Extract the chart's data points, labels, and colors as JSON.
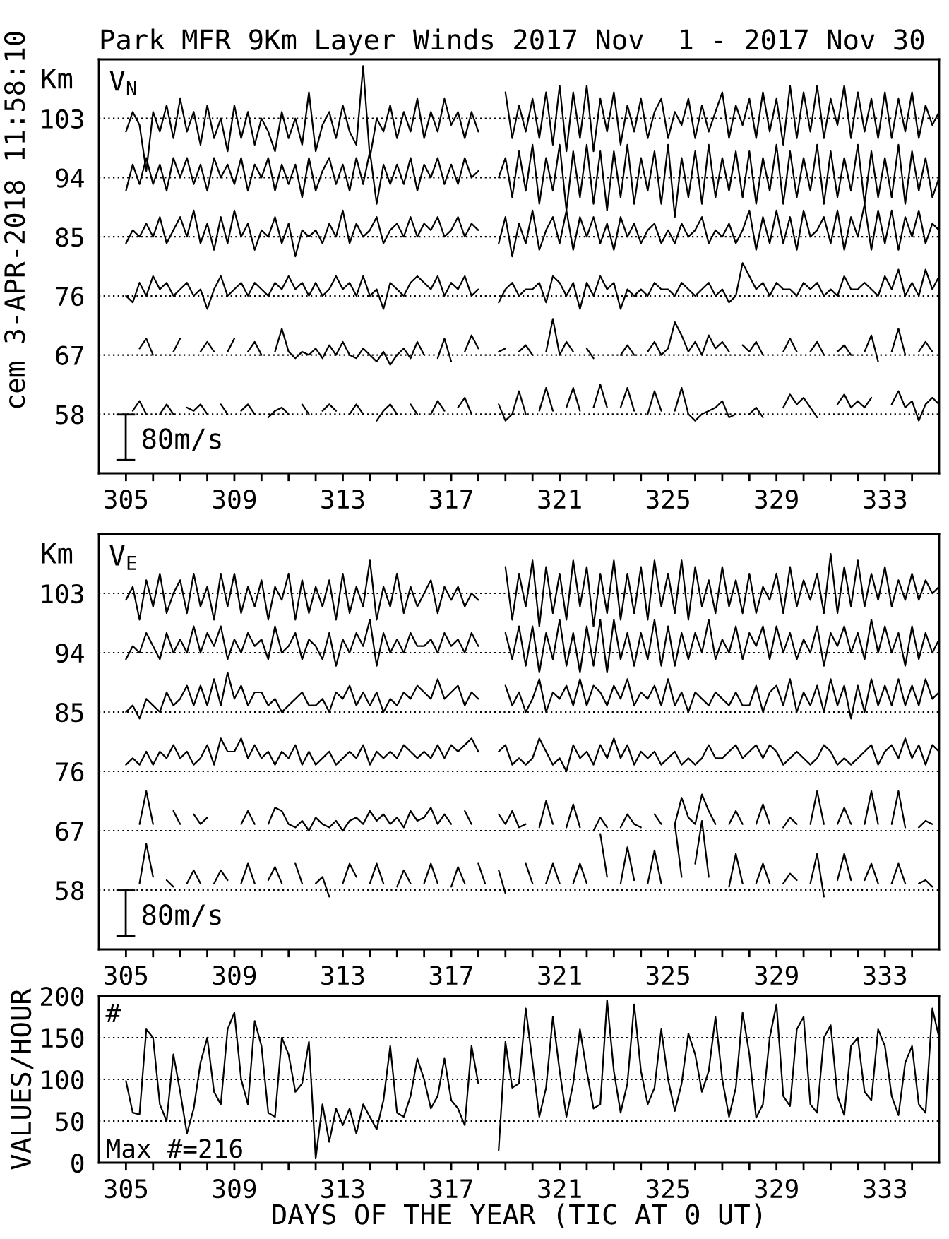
{
  "chart_data": [
    {
      "type": "line",
      "title": "Park MFR 9Km Layer Winds 2017 Nov  1 - 2017 Nov 30",
      "ylabel": "Km",
      "annotations": [
        "V$_{N}$",
        "80m/s",
        "cem 3-APR-2018 11:58:10"
      ],
      "xlim": [
        304,
        335
      ],
      "ylim": [
        49,
        112
      ],
      "yticks": [
        58,
        67,
        76,
        85,
        94,
        103
      ],
      "grid": "y",
      "xticks": [
        305,
        {
          "value": 306,
          "label": null
        },
        {
          "value": 307,
          "label": null
        },
        {
          "value": 308,
          "label": null
        },
        309,
        {
          "value": 310,
          "label": null
        },
        {
          "value": 311,
          "label": null
        },
        {
          "value": 312,
          "label": null
        },
        313,
        {
          "value": 314,
          "label": null
        },
        {
          "value": 315,
          "label": null
        },
        {
          "value": 316,
          "label": null
        },
        317,
        {
          "value": 318,
          "label": null
        },
        {
          "value": 319,
          "label": null
        },
        {
          "value": 320,
          "label": null
        },
        321,
        {
          "value": 322,
          "label": null
        },
        {
          "value": 323,
          "label": null
        },
        {
          "value": 324,
          "label": null
        },
        325,
        {
          "value": 326,
          "label": null
        },
        {
          "value": 327,
          "label": null
        },
        {
          "value": 328,
          "label": null
        },
        329,
        {
          "value": 330,
          "label": null
        },
        {
          "value": 331,
          "label": null
        },
        {
          "value": 332,
          "label": null
        },
        333,
        {
          "value": 334,
          "label": null
        }
      ],
      "x": [
        305,
        305.25,
        305.5,
        305.75,
        306,
        306.25,
        306.5,
        306.75,
        307,
        307.25,
        307.5,
        307.75,
        308,
        308.25,
        308.5,
        308.75,
        309,
        309.25,
        309.5,
        309.75,
        310,
        310.25,
        310.5,
        310.75,
        311,
        311.25,
        311.5,
        311.75,
        312,
        312.25,
        312.5,
        312.75,
        313,
        313.25,
        313.5,
        313.75,
        314,
        314.25,
        314.5,
        314.75,
        315,
        315.25,
        315.5,
        315.75,
        316,
        316.25,
        316.5,
        316.75,
        317,
        317.25,
        317.5,
        317.75,
        318,
        318.25,
        318.5,
        318.75,
        319,
        319.25,
        319.5,
        319.75,
        320,
        320.25,
        320.5,
        320.75,
        321,
        321.25,
        321.5,
        321.75,
        322,
        322.25,
        322.5,
        322.75,
        323,
        323.25,
        323.5,
        323.75,
        324,
        324.25,
        324.5,
        324.75,
        325,
        325.25,
        325.5,
        325.75,
        326,
        326.25,
        326.5,
        326.75,
        327,
        327.25,
        327.5,
        327.75,
        328,
        328.25,
        328.5,
        328.75,
        329,
        329.25,
        329.5,
        329.75,
        330,
        330.25,
        330.5,
        330.75,
        331,
        331.25,
        331.5,
        331.75,
        332,
        332.25,
        332.5,
        332.75,
        333,
        333.25,
        333.5,
        333.75,
        334,
        334.25,
        334.5,
        334.75,
        335
      ],
      "series": [
        {
          "color": "#000000",
          "values": [
            101,
            104,
            102,
            95,
            104,
            101,
            105,
            100,
            106,
            101,
            104,
            99,
            105,
            100,
            103,
            98,
            105,
            100,
            104,
            99,
            103,
            101,
            98,
            104,
            100,
            103,
            99,
            107,
            98,
            102,
            104,
            100,
            105,
            101,
            99,
            111,
            97,
            103,
            101,
            105,
            100,
            104,
            101,
            106,
            100,
            104,
            101,
            106,
            102,
            104,
            100,
            104,
            101,
            null,
            null,
            null,
            107,
            100,
            105,
            101,
            106,
            100,
            107,
            99,
            108,
            98,
            107,
            100,
            108,
            98,
            106,
            101,
            107,
            99,
            105,
            101,
            106,
            100,
            104,
            106,
            100,
            104,
            102,
            106,
            100,
            105,
            101,
            104,
            107,
            100,
            105,
            102,
            106,
            100,
            107,
            101,
            106,
            99,
            108,
            100,
            107,
            101,
            108,
            100,
            106,
            102,
            108,
            100,
            107,
            101,
            106,
            100,
            107,
            100,
            106,
            101,
            107,
            100,
            105,
            102,
            104
          ]
        },
        {
          "color": "#000000",
          "values": [
            92,
            96,
            93,
            97,
            93,
            96,
            92,
            97,
            94,
            97,
            93,
            96,
            92,
            97,
            94,
            96,
            93,
            97,
            92,
            96,
            94,
            97,
            92,
            96,
            93,
            96,
            91,
            97,
            92,
            95,
            97,
            93,
            96,
            92,
            97,
            93,
            98,
            90,
            96,
            93,
            96,
            93,
            97,
            92,
            96,
            94,
            97,
            93,
            96,
            93,
            97,
            94,
            95,
            null,
            null,
            94,
            97,
            91,
            98,
            92,
            99,
            90,
            97,
            92,
            99,
            89,
            98,
            91,
            99,
            90,
            98,
            89,
            98,
            91,
            99,
            90,
            97,
            92,
            98,
            90,
            99,
            88,
            97,
            91,
            98,
            90,
            99,
            91,
            97,
            92,
            98,
            91,
            98,
            90,
            97,
            92,
            99,
            90,
            98,
            91,
            97,
            92,
            99,
            90,
            98,
            91,
            97,
            92,
            99,
            90,
            98,
            91,
            97,
            91,
            99,
            90,
            98,
            92,
            97,
            91,
            94
          ]
        },
        {
          "color": "#000000",
          "values": [
            84,
            86,
            85,
            87,
            85,
            88,
            84,
            86,
            88,
            85,
            89,
            84,
            87,
            83,
            88,
            84,
            89,
            85,
            87,
            83,
            86,
            85,
            88,
            84,
            87,
            82,
            86,
            85,
            86,
            84,
            87,
            85,
            89,
            84,
            87,
            85,
            86,
            88,
            84,
            86,
            87,
            85,
            88,
            85,
            87,
            86,
            88,
            85,
            86,
            88,
            85,
            87,
            86,
            null,
            null,
            84,
            88,
            82,
            87,
            84,
            89,
            83,
            86,
            88,
            84,
            89,
            83,
            88,
            85,
            88,
            84,
            87,
            83,
            88,
            85,
            87,
            84,
            86,
            87,
            84,
            86,
            84,
            87,
            85,
            86,
            88,
            84,
            86,
            85,
            87,
            84,
            86,
            89,
            83,
            88,
            84,
            89,
            84,
            88,
            83,
            89,
            85,
            86,
            88,
            84,
            89,
            83,
            88,
            85,
            90,
            83,
            89,
            84,
            89,
            83,
            88,
            85,
            89,
            84,
            87,
            86
          ]
        },
        {
          "color": "#000000",
          "values": [
            76,
            75,
            78,
            76,
            79,
            77,
            78,
            76,
            77,
            78,
            76,
            77,
            74,
            77,
            79,
            76,
            77,
            78,
            76,
            78,
            77,
            76,
            78,
            77,
            79,
            77,
            78,
            76,
            78,
            76,
            77,
            79,
            77,
            78,
            76,
            79,
            76,
            77,
            74,
            78,
            77,
            76,
            78,
            79,
            78,
            77,
            79,
            76,
            78,
            77,
            79,
            76,
            77,
            null,
            null,
            75,
            77,
            78,
            76,
            77,
            77,
            78,
            75,
            79,
            78,
            76,
            78,
            74,
            78,
            76,
            79,
            77,
            78,
            74,
            77,
            76,
            77,
            76,
            78,
            77,
            77,
            76,
            78,
            77,
            76,
            77,
            78,
            76,
            77,
            75,
            76,
            81,
            79,
            77,
            78,
            76,
            78,
            77,
            77,
            76,
            78,
            77,
            78,
            76,
            77,
            76,
            79,
            77,
            77,
            78,
            77,
            76,
            79,
            77,
            80,
            76,
            78,
            76,
            80,
            77,
            79
          ]
        },
        {
          "color": "#000000",
          "values": [
            null,
            null,
            68,
            69.5,
            67,
            null,
            null,
            67.5,
            69.5,
            null,
            null,
            67.5,
            69,
            67.5,
            null,
            67.5,
            69.5,
            null,
            67.5,
            69,
            67,
            null,
            67.5,
            71,
            67.5,
            66.5,
            67.5,
            67,
            68,
            66.5,
            68.5,
            67,
            69,
            67,
            66.5,
            68,
            67,
            66,
            67.5,
            65.5,
            67,
            68,
            66.5,
            69,
            67,
            null,
            66.5,
            69.5,
            66,
            null,
            67.5,
            70,
            68,
            null,
            null,
            67.5,
            68,
            null,
            67.5,
            68.5,
            67,
            null,
            67.5,
            72.5,
            67,
            69,
            67.5,
            null,
            68,
            66.5,
            null,
            null,
            null,
            67,
            68.5,
            67,
            null,
            67.5,
            69,
            67,
            68,
            72,
            70,
            67.5,
            69,
            67,
            70,
            68,
            69,
            67.5,
            null,
            68.5,
            67.5,
            69,
            67,
            null,
            null,
            67.5,
            69.5,
            67.5,
            null,
            67.5,
            69,
            67,
            null,
            67.5,
            68.5,
            67,
            null,
            67.5,
            70,
            66,
            null,
            67.5,
            71,
            67,
            null,
            67.5,
            69,
            67.5,
            null
          ]
        },
        {
          "color": "#000000",
          "values": [
            null,
            58.5,
            60,
            58,
            null,
            58,
            59.5,
            58,
            null,
            59,
            58.5,
            59.5,
            58,
            null,
            59.5,
            58,
            null,
            58.5,
            59.5,
            58,
            null,
            57.5,
            58.5,
            59,
            58,
            null,
            59.5,
            58,
            null,
            58.5,
            59.5,
            58.5,
            null,
            58,
            59.5,
            58,
            null,
            57,
            58.5,
            59.5,
            58,
            null,
            59.5,
            58,
            null,
            58,
            60,
            58.5,
            null,
            59,
            60.5,
            58,
            null,
            null,
            null,
            59.5,
            57,
            58,
            61.5,
            58,
            null,
            58.5,
            62,
            58.5,
            null,
            59,
            62,
            58.5,
            null,
            59,
            62.5,
            59,
            null,
            59,
            62,
            58.5,
            null,
            58,
            61.5,
            58.5,
            null,
            58.5,
            62,
            58,
            57,
            58,
            58.5,
            59,
            60,
            57.5,
            58,
            null,
            58,
            59,
            57.5,
            null,
            null,
            59,
            61,
            59.5,
            60.5,
            59,
            57.5,
            null,
            null,
            59.5,
            61,
            59,
            60,
            59,
            60.5,
            null,
            null,
            59.5,
            61.5,
            59,
            60,
            57,
            59.5,
            60.5,
            59.5
          ]
        }
      ]
    },
    {
      "type": "line",
      "ylabel": "Km",
      "annotations": [
        "V$_{E}$",
        "80m/s"
      ],
      "xlim": [
        304,
        335
      ],
      "ylim": [
        49,
        112
      ],
      "yticks": [
        58,
        67,
        76,
        85,
        94,
        103
      ],
      "grid": "y",
      "xticks": [
        305,
        {
          "value": 306,
          "label": null
        },
        {
          "value": 307,
          "label": null
        },
        {
          "value": 308,
          "label": null
        },
        309,
        {
          "value": 310,
          "label": null
        },
        {
          "value": 311,
          "label": null
        },
        {
          "value": 312,
          "label": null
        },
        313,
        {
          "value": 314,
          "label": null
        },
        {
          "value": 315,
          "label": null
        },
        {
          "value": 316,
          "label": null
        },
        317,
        {
          "value": 318,
          "label": null
        },
        {
          "value": 319,
          "label": null
        },
        {
          "value": 320,
          "label": null
        },
        321,
        {
          "value": 322,
          "label": null
        },
        {
          "value": 323,
          "label": null
        },
        {
          "value": 324,
          "label": null
        },
        325,
        {
          "value": 326,
          "label": null
        },
        {
          "value": 327,
          "label": null
        },
        {
          "value": 328,
          "label": null
        },
        329,
        {
          "value": 330,
          "label": null
        },
        {
          "value": 331,
          "label": null
        },
        {
          "value": 332,
          "label": null
        },
        333,
        {
          "value": 334,
          "label": null
        }
      ],
      "x": [
        305,
        305.25,
        305.5,
        305.75,
        306,
        306.25,
        306.5,
        306.75,
        307,
        307.25,
        307.5,
        307.75,
        308,
        308.25,
        308.5,
        308.75,
        309,
        309.25,
        309.5,
        309.75,
        310,
        310.25,
        310.5,
        310.75,
        311,
        311.25,
        311.5,
        311.75,
        312,
        312.25,
        312.5,
        312.75,
        313,
        313.25,
        313.5,
        313.75,
        314,
        314.25,
        314.5,
        314.75,
        315,
        315.25,
        315.5,
        315.75,
        316,
        316.25,
        316.5,
        316.75,
        317,
        317.25,
        317.5,
        317.75,
        318,
        318.25,
        318.5,
        318.75,
        319,
        319.25,
        319.5,
        319.75,
        320,
        320.25,
        320.5,
        320.75,
        321,
        321.25,
        321.5,
        321.75,
        322,
        322.25,
        322.5,
        322.75,
        323,
        323.25,
        323.5,
        323.75,
        324,
        324.25,
        324.5,
        324.75,
        325,
        325.25,
        325.5,
        325.75,
        326,
        326.25,
        326.5,
        326.75,
        327,
        327.25,
        327.5,
        327.75,
        328,
        328.25,
        328.5,
        328.75,
        329,
        329.25,
        329.5,
        329.75,
        330,
        330.25,
        330.5,
        330.75,
        331,
        331.25,
        331.5,
        331.75,
        332,
        332.25,
        332.5,
        332.75,
        333,
        333.25,
        333.5,
        333.75,
        334,
        334.25,
        334.5,
        334.75,
        335
      ],
      "series": [
        {
          "color": "#000000",
          "values": [
            102,
            104,
            99,
            105,
            101,
            106,
            100,
            103,
            105,
            100,
            106,
            101,
            104,
            99,
            106,
            101,
            106,
            100,
            104,
            101,
            105,
            99,
            104,
            102,
            106,
            99,
            105,
            100,
            104,
            101,
            105,
            99,
            106,
            100,
            104,
            101,
            108,
            99,
            104,
            101,
            106,
            100,
            104,
            101,
            103,
            105,
            100,
            104,
            102,
            104,
            101,
            103,
            102,
            null,
            null,
            null,
            107,
            99,
            106,
            101,
            108,
            98,
            107,
            100,
            106,
            99,
            108,
            101,
            107,
            98,
            106,
            100,
            108,
            99,
            106,
            100,
            107,
            99,
            108,
            101,
            106,
            100,
            108,
            99,
            107,
            101,
            105,
            100,
            107,
            101,
            105,
            100,
            106,
            100,
            104,
            102,
            106,
            100,
            107,
            101,
            105,
            102,
            106,
            100,
            109,
            100,
            107,
            101,
            108,
            101,
            106,
            102,
            107,
            101,
            105,
            102,
            106,
            102,
            105,
            103,
            104
          ]
        },
        {
          "color": "#000000",
          "values": [
            93,
            95,
            94,
            97,
            95,
            93,
            97,
            94,
            96,
            94,
            98,
            94,
            97,
            95,
            98,
            93,
            96,
            94,
            97,
            95,
            96,
            93,
            98,
            94,
            95,
            97,
            93,
            96,
            95,
            93,
            97,
            92,
            96,
            94,
            97,
            95,
            99,
            92,
            97,
            94,
            96,
            94,
            97,
            95,
            95,
            96,
            94,
            97,
            95,
            96,
            94,
            97,
            95,
            null,
            null,
            null,
            97,
            93,
            98,
            92,
            98,
            91,
            97,
            93,
            99,
            92,
            97,
            91,
            98,
            92,
            99,
            91,
            99,
            93,
            97,
            92,
            97,
            93,
            99,
            92,
            98,
            92,
            97,
            93,
            97,
            94,
            99,
            93,
            96,
            94,
            98,
            93,
            97,
            95,
            98,
            93,
            98,
            94,
            97,
            93,
            96,
            94,
            98,
            92,
            97,
            95,
            98,
            94,
            97,
            93,
            99,
            94,
            98,
            94,
            97,
            92,
            98,
            93,
            97,
            94,
            96
          ]
        },
        {
          "color": "#000000",
          "values": [
            85,
            86,
            84,
            87,
            86,
            85,
            88,
            86,
            87,
            89,
            86,
            89,
            86,
            90,
            86,
            91,
            87,
            89,
            86,
            88,
            88,
            86,
            87,
            85,
            86,
            87,
            88,
            86,
            86,
            87,
            85,
            88,
            87,
            89,
            86,
            88,
            86,
            88,
            85,
            87,
            86,
            88,
            87,
            89,
            88,
            87,
            90,
            87,
            88,
            89,
            86,
            88,
            87,
            null,
            null,
            null,
            89,
            86,
            88,
            85,
            87,
            90,
            85,
            88,
            87,
            89,
            86,
            90,
            86,
            89,
            88,
            86,
            89,
            87,
            90,
            86,
            88,
            87,
            89,
            86,
            90,
            86,
            88,
            85,
            88,
            87,
            86,
            88,
            87,
            86,
            88,
            86,
            86,
            89,
            85,
            88,
            89,
            86,
            90,
            85,
            88,
            86,
            89,
            85,
            90,
            86,
            89,
            84,
            89,
            85,
            90,
            86,
            89,
            86,
            90,
            86,
            89,
            86,
            90,
            87,
            88
          ]
        },
        {
          "color": "#000000",
          "values": [
            77,
            78,
            77,
            79,
            77,
            79,
            78,
            80,
            78,
            79,
            77,
            78,
            80,
            77,
            81,
            79,
            79,
            81,
            78,
            80,
            78,
            79,
            77,
            79,
            78,
            80,
            77,
            79,
            77,
            78,
            79,
            77,
            78,
            79,
            78,
            80,
            77,
            79,
            78,
            79,
            78,
            80,
            79,
            78,
            79,
            78,
            80,
            78,
            80,
            79,
            80,
            81,
            79,
            null,
            null,
            79,
            80,
            77,
            78,
            77,
            78,
            81,
            79,
            77,
            78,
            76,
            80,
            78,
            79,
            77,
            80,
            78,
            81,
            78,
            80,
            77,
            79,
            78,
            79,
            77,
            78,
            79,
            77,
            78,
            77,
            78,
            80,
            78,
            78,
            79,
            80,
            78,
            79,
            80,
            78,
            80,
            79,
            77,
            78,
            79,
            78,
            77,
            78,
            80,
            79,
            77,
            78,
            77,
            78,
            79,
            80,
            77,
            79,
            80,
            78,
            81,
            78,
            80,
            77,
            80,
            79
          ]
        },
        {
          "color": "#000000",
          "values": [
            null,
            null,
            68,
            73,
            68,
            null,
            null,
            70,
            68,
            null,
            69.5,
            68,
            69,
            null,
            null,
            null,
            null,
            68,
            70,
            68,
            null,
            68,
            70.5,
            70,
            68,
            67.5,
            68.5,
            67,
            69,
            68,
            67.5,
            68.5,
            67,
            68.5,
            69,
            68,
            70,
            68.5,
            69.5,
            68,
            69,
            67.5,
            70,
            68.5,
            69,
            70.5,
            68,
            69.5,
            68,
            null,
            70,
            68,
            null,
            null,
            null,
            69.5,
            68,
            70,
            67.5,
            68,
            null,
            67.5,
            71.5,
            68,
            null,
            67.5,
            71,
            67.5,
            null,
            67,
            69,
            67.5,
            null,
            67.5,
            69.5,
            68,
            67.5,
            null,
            69.5,
            68,
            null,
            68,
            72,
            69,
            68,
            72.5,
            70,
            68,
            null,
            68,
            70,
            68,
            null,
            68,
            71,
            68,
            null,
            67.5,
            69,
            68,
            null,
            68,
            73,
            68,
            null,
            68,
            70.5,
            68,
            null,
            68,
            73,
            68,
            null,
            68,
            73,
            67.5,
            null,
            67.5,
            68.5,
            68,
            null
          ]
        },
        {
          "color": "#000000",
          "values": [
            null,
            null,
            59,
            65,
            60,
            null,
            59.5,
            58.5,
            null,
            59,
            61,
            59,
            null,
            59,
            61,
            59.5,
            null,
            59,
            62,
            59,
            null,
            59.5,
            61.5,
            59,
            null,
            62,
            59,
            null,
            59,
            60,
            57,
            null,
            59,
            62,
            60,
            null,
            59,
            62,
            59,
            null,
            58.5,
            61,
            59,
            null,
            59,
            62,
            59,
            null,
            58.5,
            61.5,
            59,
            null,
            62,
            59,
            null,
            61,
            57.5,
            null,
            null,
            62,
            59,
            null,
            59,
            62,
            59,
            null,
            59,
            62,
            59,
            null,
            66.5,
            60,
            null,
            59,
            64.5,
            59.5,
            null,
            59,
            64,
            59,
            null,
            68,
            60,
            null,
            62,
            68.5,
            60,
            null,
            null,
            58.5,
            63.5,
            59,
            null,
            59,
            62,
            59,
            null,
            59,
            60.5,
            59.5,
            null,
            59,
            63.5,
            57,
            null,
            59.5,
            63.5,
            59.5,
            null,
            59.5,
            62,
            59,
            null,
            59,
            62,
            59,
            null,
            59,
            59.5,
            58.5,
            null
          ]
        }
      ]
    },
    {
      "type": "line",
      "ylabel": "VALUES/HOUR",
      "xlabel": "DAYS OF THE YEAR (TIC AT 0 UT)",
      "annotations": [
        "#",
        "Max #=216"
      ],
      "xlim": [
        304,
        335
      ],
      "ylim": [
        0,
        200
      ],
      "yticks": [
        0,
        50,
        100,
        150,
        200
      ],
      "grid": "y",
      "xticks": [
        305,
        {
          "value": 306,
          "label": null
        },
        {
          "value": 307,
          "label": null
        },
        {
          "value": 308,
          "label": null
        },
        309,
        {
          "value": 310,
          "label": null
        },
        {
          "value": 311,
          "label": null
        },
        {
          "value": 312,
          "label": null
        },
        313,
        {
          "value": 314,
          "label": null
        },
        {
          "value": 315,
          "label": null
        },
        {
          "value": 316,
          "label": null
        },
        317,
        {
          "value": 318,
          "label": null
        },
        {
          "value": 319,
          "label": null
        },
        {
          "value": 320,
          "label": null
        },
        321,
        {
          "value": 322,
          "label": null
        },
        {
          "value": 323,
          "label": null
        },
        {
          "value": 324,
          "label": null
        },
        325,
        {
          "value": 326,
          "label": null
        },
        {
          "value": 327,
          "label": null
        },
        {
          "value": 328,
          "label": null
        },
        329,
        {
          "value": 330,
          "label": null
        },
        {
          "value": 331,
          "label": null
        },
        {
          "value": 332,
          "label": null
        },
        333,
        {
          "value": 334,
          "label": null
        }
      ],
      "x": [
        305,
        305.25,
        305.5,
        305.75,
        306,
        306.25,
        306.5,
        306.75,
        307,
        307.25,
        307.5,
        307.75,
        308,
        308.25,
        308.5,
        308.75,
        309,
        309.25,
        309.5,
        309.75,
        310,
        310.25,
        310.5,
        310.75,
        311,
        311.25,
        311.5,
        311.75,
        312,
        312.25,
        312.5,
        312.75,
        313,
        313.25,
        313.5,
        313.75,
        314,
        314.25,
        314.5,
        314.75,
        315,
        315.25,
        315.5,
        315.75,
        316,
        316.25,
        316.5,
        316.75,
        317,
        317.25,
        317.5,
        317.75,
        318,
        318.25,
        318.5,
        318.75,
        319,
        319.25,
        319.5,
        319.75,
        320,
        320.25,
        320.5,
        320.75,
        321,
        321.25,
        321.5,
        321.75,
        322,
        322.25,
        322.5,
        322.75,
        323,
        323.25,
        323.5,
        323.75,
        324,
        324.25,
        324.5,
        324.75,
        325,
        325.25,
        325.5,
        325.75,
        326,
        326.25,
        326.5,
        326.75,
        327,
        327.25,
        327.5,
        327.75,
        328,
        328.25,
        328.5,
        328.75,
        329,
        329.25,
        329.5,
        329.75,
        330,
        330.25,
        330.5,
        330.75,
        331,
        331.25,
        331.5,
        331.75,
        332,
        332.25,
        332.5,
        332.75,
        333,
        333.25,
        333.5,
        333.75,
        334,
        334.25,
        334.5,
        334.75,
        335
      ],
      "series": [
        {
          "color": "#000000",
          "values": [
            98,
            60,
            58,
            160,
            150,
            70,
            50,
            130,
            85,
            35,
            65,
            120,
            150,
            85,
            70,
            160,
            180,
            100,
            70,
            170,
            140,
            60,
            55,
            150,
            130,
            85,
            95,
            145,
            5,
            70,
            25,
            65,
            45,
            65,
            35,
            70,
            55,
            40,
            75,
            140,
            60,
            55,
            80,
            125,
            100,
            65,
            80,
            125,
            75,
            65,
            45,
            140,
            95,
            null,
            null,
            15,
            145,
            90,
            95,
            185,
            120,
            55,
            90,
            175,
            110,
            55,
            95,
            160,
            110,
            65,
            70,
            195,
            110,
            60,
            95,
            190,
            110,
            70,
            90,
            160,
            100,
            62,
            95,
            155,
            130,
            85,
            110,
            175,
            100,
            55,
            90,
            180,
            130,
            54,
            70,
            150,
            190,
            80,
            68,
            160,
            175,
            70,
            60,
            150,
            165,
            80,
            57,
            140,
            150,
            85,
            75,
            160,
            140,
            80,
            57,
            120,
            140,
            70,
            60,
            185,
            150
          ]
        }
      ]
    }
  ]
}
